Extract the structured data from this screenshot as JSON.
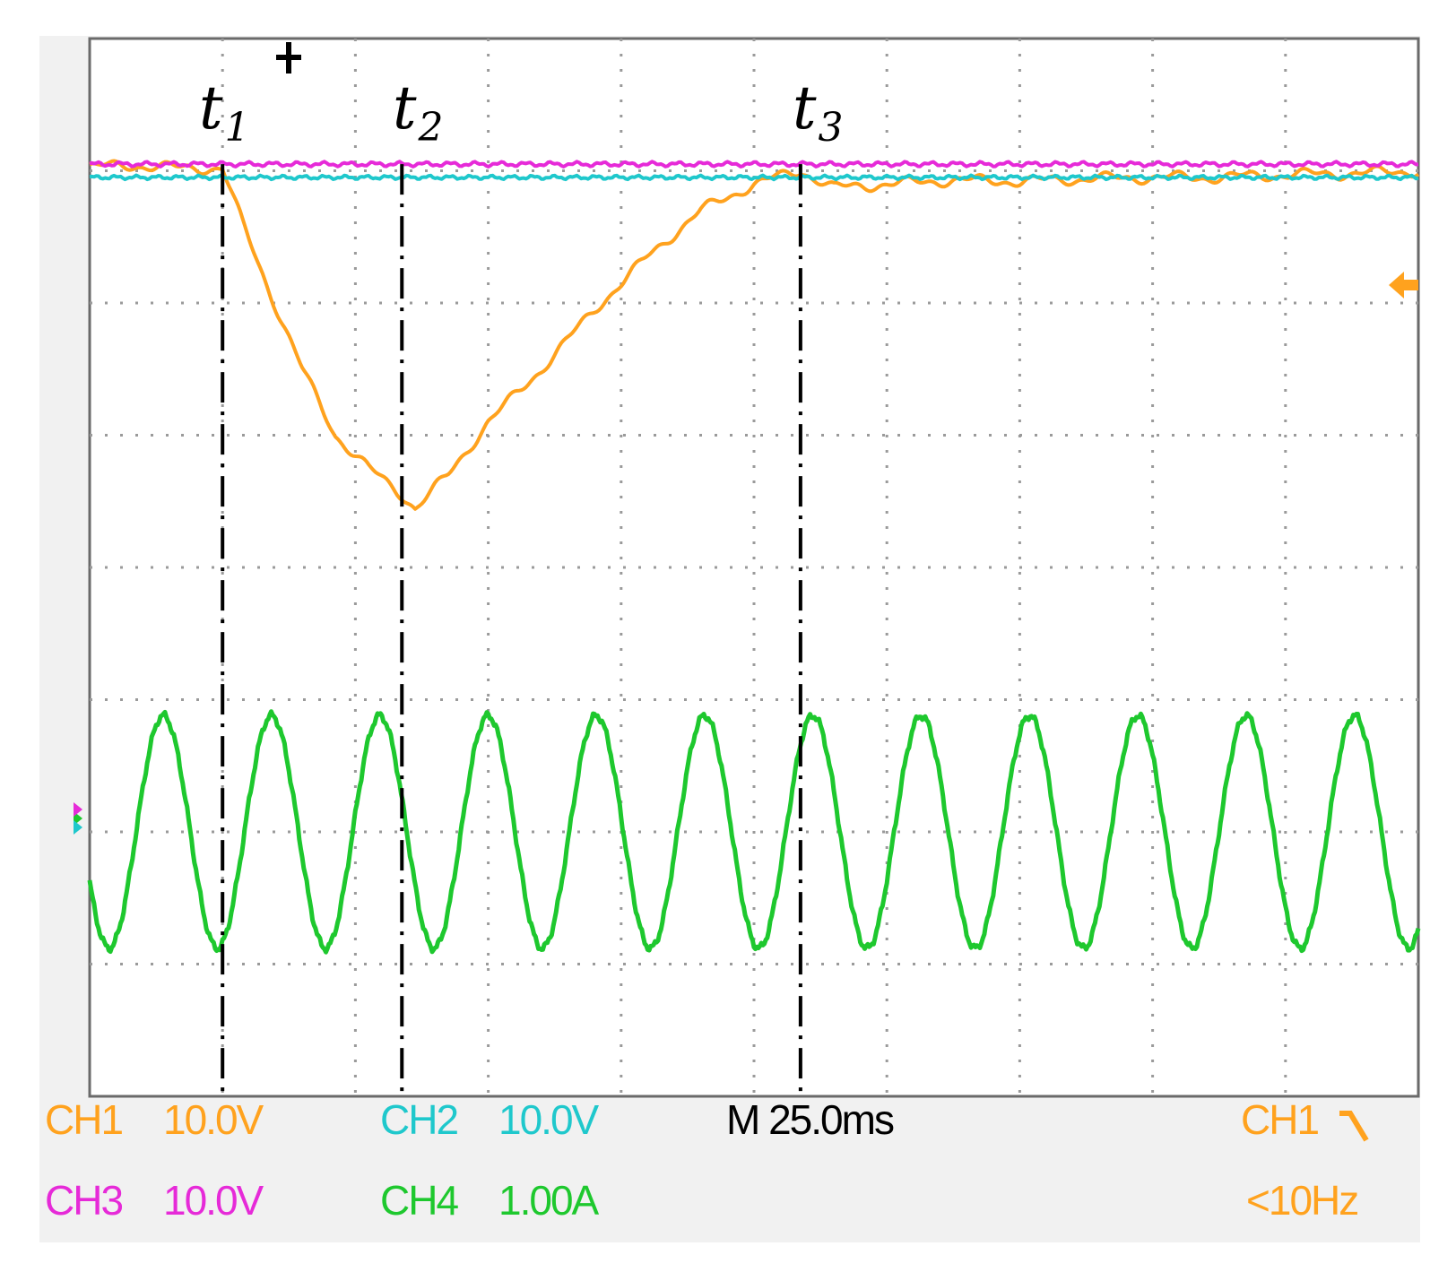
{
  "cursors": [
    {
      "label": "t",
      "sub": "1",
      "x_div": 1.0
    },
    {
      "label": "t",
      "sub": "2",
      "x_div": 2.35
    },
    {
      "label": "t",
      "sub": "3",
      "x_div": 5.35
    }
  ],
  "readouts": {
    "ch1": {
      "name": "CH1",
      "scale": "10.0V"
    },
    "ch2": {
      "name": "CH2",
      "scale": "10.0V"
    },
    "ch3": {
      "name": "CH3",
      "scale": "10.0V"
    },
    "ch4": {
      "name": "CH4",
      "scale": "1.00A"
    },
    "timebase": "M 25.0ms",
    "trigger_source": "CH1",
    "trigger_slope_icon": "falling-edge-icon",
    "frequency": "<10Hz"
  },
  "colors": {
    "ch1": "#ffa21e",
    "ch2": "#1fc8cc",
    "ch3": "#e62ad8",
    "ch4": "#1ec82e",
    "grid": "#9a9a9a",
    "cursor": "#000000"
  },
  "chart_data": {
    "type": "line",
    "title": "",
    "xlabel": "",
    "ylabel": "",
    "xlim": [
      0,
      10
    ],
    "ylim": [
      0,
      8
    ],
    "grid": true,
    "series": [
      {
        "name": "CH1",
        "x": [
          0,
          0.35,
          0.7,
          1.0,
          1.15,
          1.35,
          1.6,
          1.85,
          2.1,
          2.35,
          2.45,
          2.7,
          3.0,
          3.4,
          3.8,
          4.2,
          4.6,
          5.0,
          5.35,
          5.6,
          6.0,
          6.5,
          7.0,
          7.5,
          8.0,
          8.5,
          9.0,
          9.5,
          10.0
        ],
        "y": [
          7.03,
          7.04,
          7.02,
          7.02,
          6.6,
          6.1,
          5.5,
          5.0,
          4.75,
          4.55,
          4.45,
          4.7,
          5.1,
          5.5,
          5.95,
          6.35,
          6.7,
          6.9,
          7.0,
          6.87,
          6.9,
          6.93,
          6.92,
          6.94,
          6.95,
          6.95,
          6.97,
          6.98,
          7.0
        ]
      },
      {
        "name": "CH2",
        "x": [
          0,
          10
        ],
        "y": [
          6.95,
          6.95
        ]
      },
      {
        "name": "CH3",
        "x": [
          0,
          10
        ],
        "y": [
          7.05,
          7.05
        ]
      },
      {
        "name": "CH4",
        "amplitude_div": 0.88,
        "offset_div": 2.0,
        "period_div": 0.815,
        "phase_div": 0.35
      }
    ]
  }
}
